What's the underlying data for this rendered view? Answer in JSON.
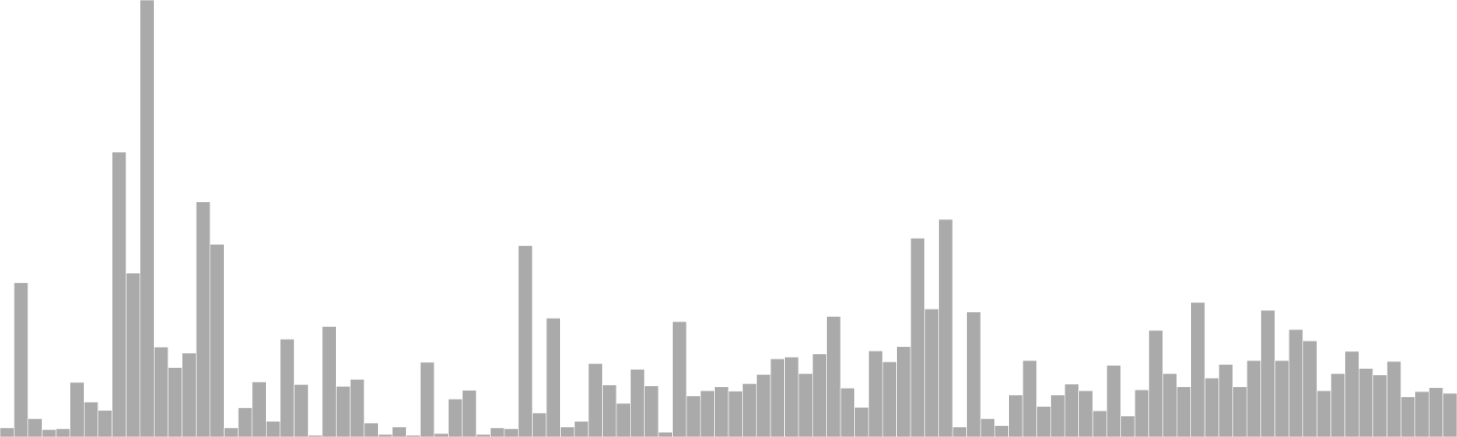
{
  "chart_data": {
    "type": "bar",
    "title": "",
    "xlabel": "",
    "ylabel": "",
    "grid": false,
    "legend": "none",
    "ylim": [
      0,
      100
    ],
    "bar_color": "#aaaaaa",
    "values": [
      2.1,
      35.3,
      4.2,
      1.7,
      1.9,
      12.5,
      8.0,
      6.1,
      65.2,
      37.5,
      100.0,
      20.6,
      15.9,
      19.2,
      53.8,
      44.1,
      2.1,
      6.7,
      12.6,
      3.6,
      22.4,
      12.0,
      0.4,
      25.3,
      11.6,
      13.2,
      3.2,
      0.6,
      2.3,
      0.4,
      17.1,
      0.8,
      8.7,
      10.7,
      0.6,
      2.1,
      1.9,
      43.8,
      5.5,
      27.2,
      2.3,
      3.6,
      16.8,
      11.9,
      7.7,
      15.5,
      11.7,
      1.1,
      26.4,
      9.4,
      10.6,
      11.5,
      10.5,
      12.2,
      14.3,
      17.9,
      18.3,
      14.5,
      19.0,
      27.6,
      11.2,
      6.8,
      19.7,
      17.2,
      20.7,
      45.5,
      29.3,
      49.8,
      2.3,
      28.6,
      4.2,
      2.6,
      9.6,
      17.5,
      7.0,
      9.6,
      12.1,
      10.6,
      6.0,
      16.4,
      4.8,
      10.8,
      24.4,
      14.5,
      11.5,
      30.8,
      13.5,
      16.6,
      11.5,
      17.5,
      29.0,
      17.5,
      24.6,
      22.0,
      10.6,
      14.5,
      19.6,
      15.7,
      14.2,
      17.3,
      9.2,
      10.4,
      11.3,
      10.0
    ]
  }
}
